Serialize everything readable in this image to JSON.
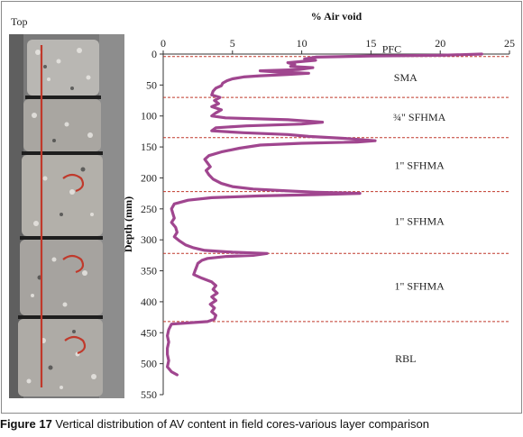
{
  "photo": {
    "label": "Top",
    "core_segments": 5,
    "background_color": "#6f6f6f",
    "stripe_color": "#c0392b"
  },
  "caption": {
    "figure_no": "Figure 17",
    "text": "Vertical distribution of AV content in field cores-various layer comparison"
  },
  "chart_data": {
    "type": "line",
    "title": "",
    "xlabel": "% Air void",
    "ylabel": "Depth (mm)",
    "xlim": [
      0,
      25
    ],
    "ylim": [
      0,
      550
    ],
    "y_inverted": true,
    "x_axis_position": "top",
    "x_ticks": [
      0,
      5,
      10,
      15,
      20,
      25
    ],
    "y_ticks": [
      0,
      50,
      100,
      150,
      200,
      250,
      300,
      350,
      400,
      450,
      500,
      550
    ],
    "grid": false,
    "line_color": "#a0468f",
    "boundary_color": "#c0392b",
    "layer_boundaries": [
      4,
      70,
      135,
      222,
      322,
      432
    ],
    "layers": [
      {
        "name": "PFC",
        "x": 16.5,
        "y": -8
      },
      {
        "name": "SMA",
        "x": 17.5,
        "y": 38
      },
      {
        "name": "¾\" SFHMA",
        "x": 18.5,
        "y": 102
      },
      {
        "name": "1\" SFHMA",
        "x": 18.5,
        "y": 180
      },
      {
        "name": "1\" SFHMA",
        "x": 18.5,
        "y": 270
      },
      {
        "name": "1\" SFHMA",
        "x": 18.5,
        "y": 375
      },
      {
        "name": "RBL",
        "x": 17.5,
        "y": 492
      }
    ],
    "series": [
      {
        "points": [
          [
            23,
            0
          ],
          [
            20,
            2
          ],
          [
            15,
            3
          ],
          [
            11,
            5
          ],
          [
            10.2,
            8
          ],
          [
            11,
            10
          ],
          [
            9,
            14
          ],
          [
            9.5,
            17
          ],
          [
            9.2,
            20
          ],
          [
            10.8,
            22
          ],
          [
            9.8,
            25
          ],
          [
            7,
            27
          ],
          [
            8.2,
            29
          ],
          [
            10.5,
            31
          ],
          [
            9,
            33
          ],
          [
            7,
            35
          ],
          [
            5.8,
            37
          ],
          [
            5,
            40
          ],
          [
            4.6,
            43
          ],
          [
            4.3,
            47
          ],
          [
            4.2,
            51
          ],
          [
            3.8,
            55
          ],
          [
            3.6,
            60
          ],
          [
            3.5,
            66
          ],
          [
            4.1,
            70
          ],
          [
            3.7,
            75
          ],
          [
            4,
            80
          ],
          [
            3.5,
            85
          ],
          [
            4.2,
            90
          ],
          [
            3.8,
            95
          ],
          [
            3.5,
            100
          ],
          [
            4.5,
            103
          ],
          [
            9,
            106
          ],
          [
            11.5,
            110
          ],
          [
            10,
            113
          ],
          [
            6,
            116
          ],
          [
            3.8,
            119
          ],
          [
            3.5,
            124
          ],
          [
            5.8,
            127
          ],
          [
            9,
            130
          ],
          [
            10.5,
            133
          ],
          [
            13,
            136
          ],
          [
            15.3,
            140
          ],
          [
            14,
            142
          ],
          [
            10,
            144
          ],
          [
            7,
            147
          ],
          [
            5.5,
            152
          ],
          [
            4.2,
            158
          ],
          [
            3.3,
            164
          ],
          [
            3,
            170
          ],
          [
            3.2,
            176
          ],
          [
            3.4,
            182
          ],
          [
            3.1,
            188
          ],
          [
            3.3,
            195
          ],
          [
            3.6,
            202
          ],
          [
            4.2,
            209
          ],
          [
            5,
            214
          ],
          [
            6.5,
            218
          ],
          [
            9,
            221
          ],
          [
            11,
            223
          ],
          [
            14.2,
            225
          ],
          [
            11,
            227
          ],
          [
            7,
            229
          ],
          [
            3.5,
            232
          ],
          [
            1.8,
            236
          ],
          [
            0.8,
            242
          ],
          [
            0.6,
            250
          ],
          [
            0.7,
            258
          ],
          [
            0.8,
            265
          ],
          [
            0.6,
            272
          ],
          [
            0.9,
            280
          ],
          [
            1.0,
            288
          ],
          [
            0.8,
            295
          ],
          [
            1.2,
            302
          ],
          [
            1.6,
            308
          ],
          [
            2.2,
            313
          ],
          [
            3,
            317
          ],
          [
            5,
            320
          ],
          [
            7.5,
            322
          ],
          [
            6.5,
            325
          ],
          [
            4.5,
            327
          ],
          [
            3.2,
            330
          ],
          [
            2.8,
            333
          ],
          [
            2.5,
            338
          ],
          [
            2.4,
            344
          ],
          [
            2.3,
            350
          ],
          [
            2.2,
            356
          ],
          [
            2.8,
            362
          ],
          [
            3.5,
            368
          ],
          [
            3.8,
            374
          ],
          [
            3.6,
            380
          ],
          [
            3.9,
            386
          ],
          [
            3.5,
            392
          ],
          [
            3.8,
            398
          ],
          [
            3.4,
            404
          ],
          [
            3.7,
            410
          ],
          [
            3.5,
            416
          ],
          [
            3.8,
            422
          ],
          [
            3.7,
            428
          ],
          [
            3.2,
            432
          ],
          [
            0.6,
            436
          ],
          [
            0.4,
            445
          ],
          [
            0.3,
            455
          ],
          [
            0.4,
            465
          ],
          [
            0.3,
            475
          ],
          [
            0.3,
            485
          ],
          [
            0.4,
            495
          ],
          [
            0.3,
            505
          ],
          [
            0.6,
            513
          ],
          [
            1.0,
            518
          ]
        ]
      }
    ]
  }
}
